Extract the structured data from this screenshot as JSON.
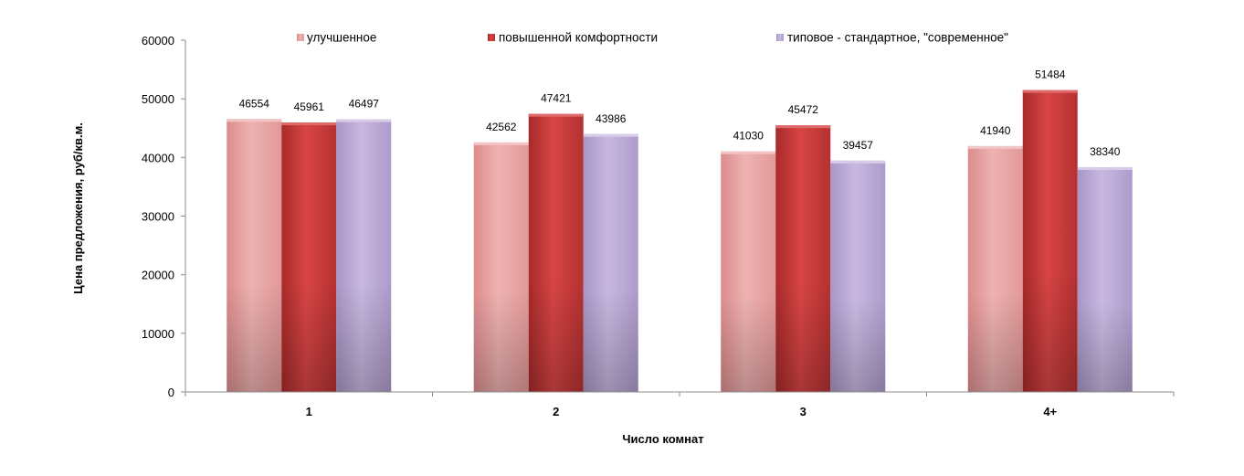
{
  "chart_data": {
    "type": "bar",
    "categories": [
      "1",
      "2",
      "3",
      "4+"
    ],
    "series": [
      {
        "name": "улучшенное",
        "values": [
          46554,
          42562,
          41030,
          41940
        ],
        "color": "#e59c9c"
      },
      {
        "name": "повышенной комфортности",
        "values": [
          45961,
          47421,
          45472,
          51484
        ],
        "color": "#c93a3a"
      },
      {
        "name": "типовое - стандартное, \"современное\"",
        "values": [
          46497,
          43986,
          39457,
          38340
        ],
        "color": "#b8a6d2"
      }
    ],
    "data_labels": [
      [
        "46554",
        "42562",
        "41030",
        "41940"
      ],
      [
        "45961",
        "47421",
        "45472",
        "51484"
      ],
      [
        "46497",
        "43986",
        "39457",
        "38340"
      ]
    ],
    "y_ticks": [
      "0",
      "10000",
      "20000",
      "30000",
      "40000",
      "50000",
      "60000"
    ],
    "xlabel": "Число комнат",
    "ylabel": "Цена предложения, руб/кв.м.",
    "ylim": [
      0,
      60000
    ],
    "grid": false,
    "legend_position": "top"
  }
}
